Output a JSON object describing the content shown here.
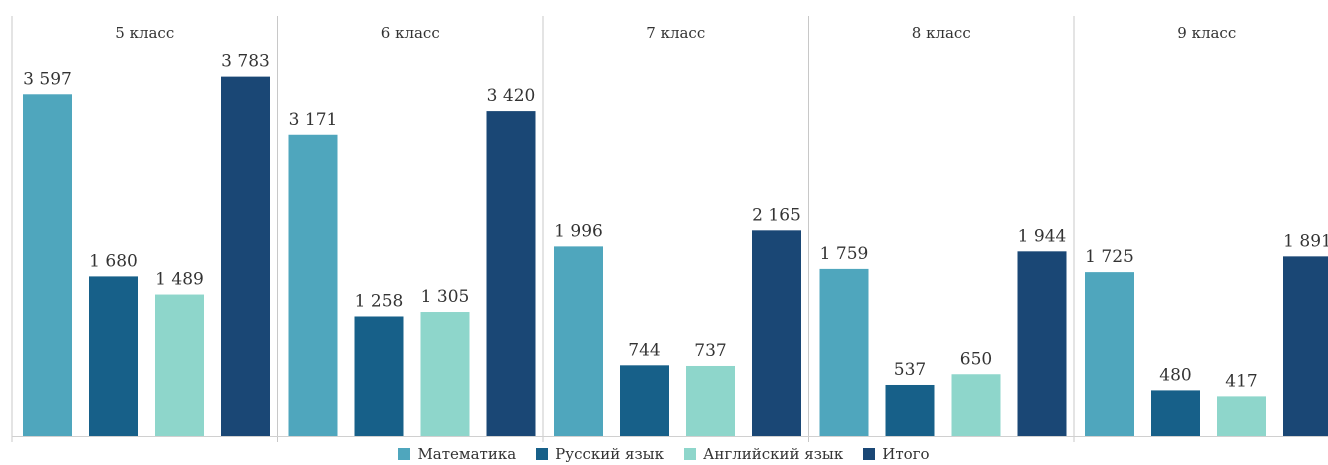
{
  "chart_data": {
    "type": "bar",
    "panels": [
      {
        "title": "5 класс",
        "values": [
          3597,
          1680,
          1489,
          3783
        ],
        "labels": [
          "3 597",
          "1 680",
          "1 489",
          "3 783"
        ]
      },
      {
        "title": "6 класс",
        "values": [
          3171,
          1258,
          1305,
          3420
        ],
        "labels": [
          "3 171",
          "1 258",
          "1 305",
          "3 420"
        ]
      },
      {
        "title": "7 класс",
        "values": [
          1996,
          744,
          737,
          2165
        ],
        "labels": [
          "1 996",
          "744",
          "737",
          "2 165"
        ]
      },
      {
        "title": "8 класс",
        "values": [
          1759,
          537,
          650,
          1944
        ],
        "labels": [
          "1 759",
          "537",
          "650",
          "1 944"
        ]
      },
      {
        "title": "9 класс",
        "values": [
          1725,
          480,
          417,
          1891
        ],
        "labels": [
          "1 725",
          "480",
          "417",
          "1 891"
        ]
      }
    ],
    "series": [
      {
        "name": "Математика",
        "color": "#4fa6bd"
      },
      {
        "name": "Русский язык",
        "color": "#176089"
      },
      {
        "name": "Английский язык",
        "color": "#8ed6cb"
      },
      {
        "name": "Итого",
        "color": "#1a4775"
      }
    ],
    "ylim": [
      0,
      4000
    ],
    "grid": false,
    "legend_position": "bottom"
  }
}
